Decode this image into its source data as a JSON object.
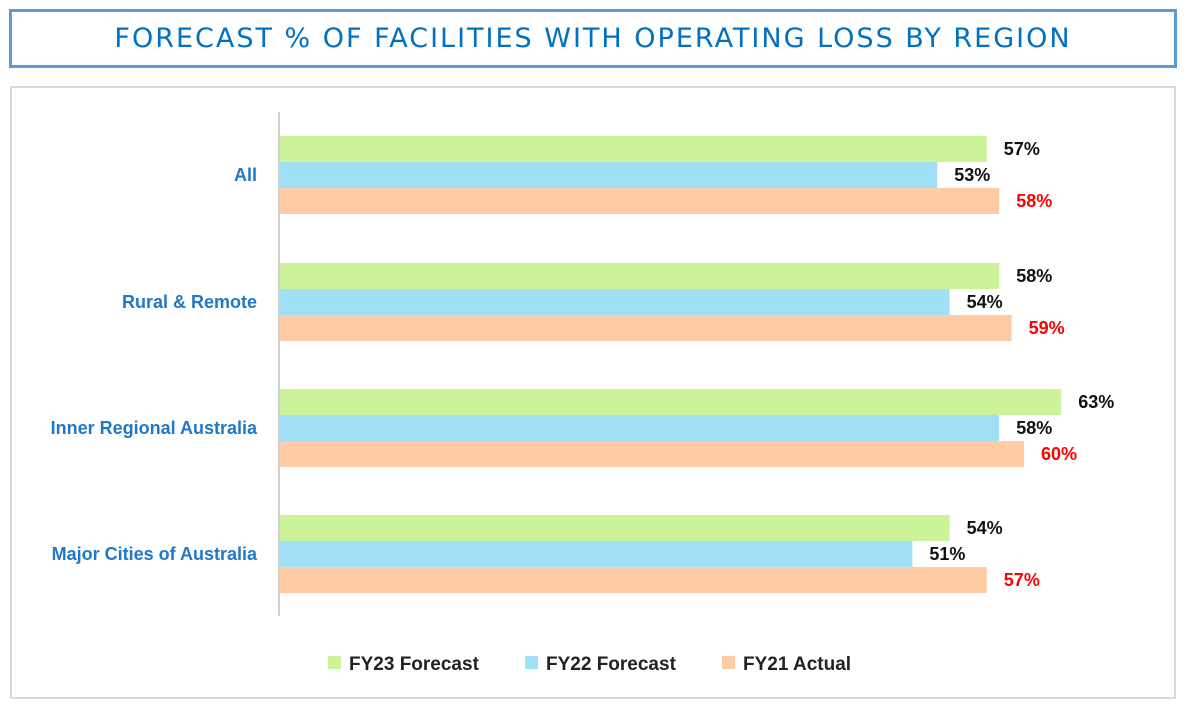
{
  "chart_data": {
    "type": "bar",
    "orientation": "horizontal",
    "title": "FORECAST % OF FACILITIES WITH OPERATING LOSS BY REGION",
    "categories": [
      "All",
      "Rural & Remote",
      "Inner Regional Australia",
      "Major Cities of Australia"
    ],
    "series": [
      {
        "name": "FY23 Forecast",
        "color": "#ccf29a",
        "label_color": "#111111",
        "values": [
          57,
          58,
          63,
          54
        ]
      },
      {
        "name": "FY22 Forecast",
        "color": "#a0e0f7",
        "label_color": "#111111",
        "values": [
          53,
          54,
          58,
          51
        ]
      },
      {
        "name": "FY21 Actual",
        "color": "#ffcba4",
        "label_color": "#ff0000",
        "values": [
          58,
          59,
          60,
          57
        ]
      }
    ],
    "value_format": "percent",
    "xlabel": "",
    "ylabel": "",
    "grid": false,
    "legend_position": "bottom"
  }
}
